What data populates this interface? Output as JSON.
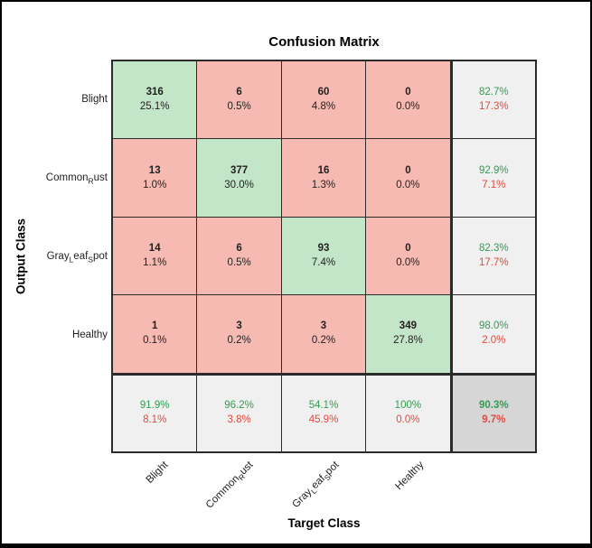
{
  "title": "Confusion Matrix",
  "x_axis_label": "Target Class",
  "y_axis_label": "Output Class",
  "classes": [
    "Blight",
    "Common_Rust",
    "Gray_Leaf_Spot",
    "Healthy"
  ],
  "chart_data": {
    "type": "heatmap",
    "title": "Confusion Matrix",
    "xlabel": "Target Class",
    "ylabel": "Output Class",
    "categories": [
      "Blight",
      "Common_Rust",
      "Gray_Leaf_Spot",
      "Healthy"
    ],
    "cells": [
      [
        {
          "count": "316",
          "pct": "25.1%"
        },
        {
          "count": "6",
          "pct": "0.5%"
        },
        {
          "count": "60",
          "pct": "4.8%"
        },
        {
          "count": "0",
          "pct": "0.0%"
        }
      ],
      [
        {
          "count": "13",
          "pct": "1.0%"
        },
        {
          "count": "377",
          "pct": "30.0%"
        },
        {
          "count": "16",
          "pct": "1.3%"
        },
        {
          "count": "0",
          "pct": "0.0%"
        }
      ],
      [
        {
          "count": "14",
          "pct": "1.1%"
        },
        {
          "count": "6",
          "pct": "0.5%"
        },
        {
          "count": "93",
          "pct": "7.4%"
        },
        {
          "count": "0",
          "pct": "0.0%"
        }
      ],
      [
        {
          "count": "1",
          "pct": "0.1%"
        },
        {
          "count": "3",
          "pct": "0.2%"
        },
        {
          "count": "3",
          "pct": "0.2%"
        },
        {
          "count": "349",
          "pct": "27.8%"
        }
      ]
    ],
    "row_summary": [
      {
        "pos": "82.7%",
        "neg": "17.3%"
      },
      {
        "pos": "92.9%",
        "neg": "7.1%"
      },
      {
        "pos": "82.3%",
        "neg": "17.7%"
      },
      {
        "pos": "98.0%",
        "neg": "2.0%"
      }
    ],
    "col_summary": [
      {
        "pos": "91.9%",
        "neg": "8.1%"
      },
      {
        "pos": "96.2%",
        "neg": "3.8%"
      },
      {
        "pos": "54.1%",
        "neg": "45.9%"
      },
      {
        "pos": "100%",
        "neg": "0.0%"
      }
    ],
    "overall": {
      "pos": "90.3%",
      "neg": "9.7%"
    }
  },
  "colors": {
    "diagonal_fill": "#c3e5c8",
    "offdiagonal_fill": "#f6bab3",
    "summary_fill": "#f0f0f0",
    "corner_fill": "#d6d6d6",
    "grid_line": "#2b2b2b",
    "text_dark": "#1f1f1f",
    "text_green": "#2f9e4f",
    "text_red": "#df4b3e",
    "figure_border": "#000000",
    "background": "#ffffff"
  }
}
